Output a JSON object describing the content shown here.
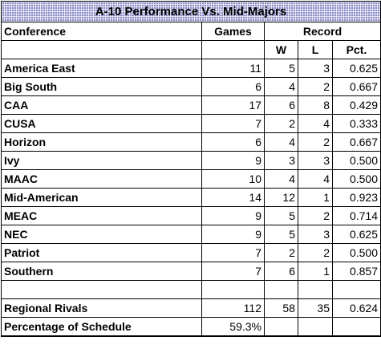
{
  "title": "A-10 Performance Vs. Mid-Majors",
  "headers": {
    "conference": "Conference",
    "games": "Games",
    "record": "Record",
    "w": "W",
    "l": "L",
    "pct": "Pct."
  },
  "rows": [
    {
      "conference": "America East",
      "games": "11",
      "w": "5",
      "l": "3",
      "pct": "0.625"
    },
    {
      "conference": "Big South",
      "games": "6",
      "w": "4",
      "l": "2",
      "pct": "0.667"
    },
    {
      "conference": "CAA",
      "games": "17",
      "w": "6",
      "l": "8",
      "pct": "0.429"
    },
    {
      "conference": "CUSA",
      "games": "7",
      "w": "2",
      "l": "4",
      "pct": "0.333"
    },
    {
      "conference": "Horizon",
      "games": "6",
      "w": "4",
      "l": "2",
      "pct": "0.667"
    },
    {
      "conference": "Ivy",
      "games": "9",
      "w": "3",
      "l": "3",
      "pct": "0.500"
    },
    {
      "conference": "MAAC",
      "games": "10",
      "w": "4",
      "l": "4",
      "pct": "0.500"
    },
    {
      "conference": "Mid-American",
      "games": "14",
      "w": "12",
      "l": "1",
      "pct": "0.923"
    },
    {
      "conference": "MEAC",
      "games": "9",
      "w": "5",
      "l": "2",
      "pct": "0.714"
    },
    {
      "conference": "NEC",
      "games": "9",
      "w": "5",
      "l": "3",
      "pct": "0.625"
    },
    {
      "conference": "Patriot",
      "games": "7",
      "w": "2",
      "l": "2",
      "pct": "0.500"
    },
    {
      "conference": "Southern",
      "games": "7",
      "w": "6",
      "l": "1",
      "pct": "0.857"
    }
  ],
  "totals": {
    "label": "Regional Rivals",
    "games": "112",
    "w": "58",
    "l": "35",
    "pct": "0.624"
  },
  "schedule": {
    "label": "Percentage of Schedule",
    "value": "59.3%"
  }
}
